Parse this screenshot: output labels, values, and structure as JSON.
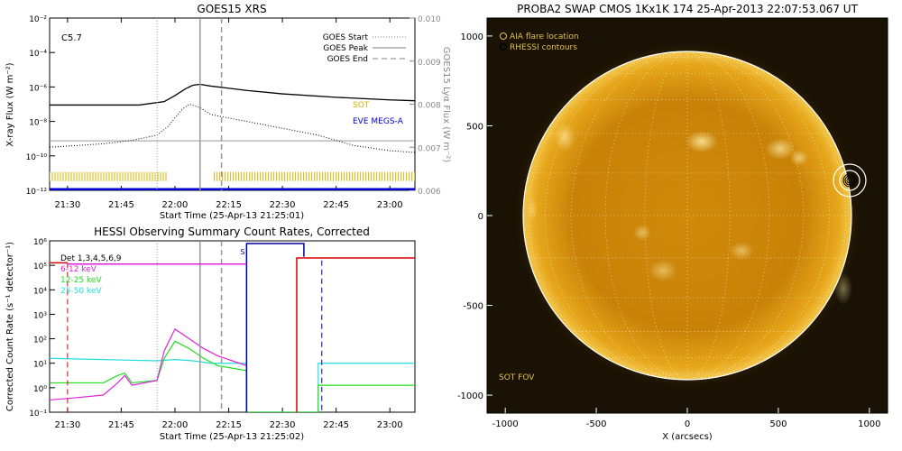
{
  "colors": {
    "sot": "#d4b400",
    "eve": "#0000cc",
    "goes_grey": "#999999",
    "r612": "#dd22dd",
    "r1225": "#22dd22",
    "r2550": "#22dddd",
    "red": "#dd0000",
    "blue": "#000099",
    "label_grey": "#888888",
    "sun_label": "#e0c24a"
  },
  "chart_data": [
    {
      "type": "line",
      "panel": "goes",
      "title": "GOES15 XRS",
      "xlabel": "Start Time (25-Apr-13 21:25:01)",
      "ylabel": "X-ray Flux (W m⁻²)",
      "y2label": "GOES15 Lyα Flux (W m⁻²)",
      "xlim": [
        "21:25",
        "23:07"
      ],
      "ylim_log10": [
        -12,
        -2
      ],
      "y2lim": [
        0.006,
        0.01
      ],
      "x_ticks": [
        "21:30",
        "21:45",
        "22:00",
        "22:15",
        "22:30",
        "22:45",
        "23:00"
      ],
      "y_ticks_left": [
        "10⁻¹²",
        "10⁻¹⁰",
        "10⁻⁸",
        "10⁻⁶",
        "10⁻⁴",
        "10⁻²"
      ],
      "y_ticks_right": [
        "0.006",
        "0.007",
        "0.008",
        "0.009",
        "0.010"
      ],
      "flare_class": "C5.7",
      "legend": [
        {
          "label": "GOES Start",
          "style": "dotted"
        },
        {
          "label": "GOES Peak",
          "style": "solid"
        },
        {
          "label": "GOES End",
          "style": "dashed"
        }
      ],
      "markers": {
        "start": "21:55",
        "peak": "22:07",
        "end": "22:13"
      },
      "annotations": {
        "sot": "SOT",
        "eve": "EVE MEGS-A"
      },
      "series": [
        {
          "name": "long",
          "x": [
            "21:25",
            "21:50",
            "21:57",
            "22:00",
            "22:03",
            "22:05",
            "22:07",
            "22:10",
            "22:20",
            "22:30",
            "22:45",
            "23:00",
            "23:07"
          ],
          "log_flux": [
            -7.05,
            -7.05,
            -6.85,
            -6.5,
            -6.1,
            -5.9,
            -5.85,
            -5.95,
            -6.2,
            -6.4,
            -6.6,
            -6.75,
            -6.8
          ]
        },
        {
          "name": "short",
          "x": [
            "21:25",
            "21:40",
            "21:48",
            "21:55",
            "21:58",
            "22:02",
            "22:04",
            "22:07",
            "22:10",
            "22:20",
            "22:30",
            "22:40",
            "22:50",
            "23:00",
            "23:07"
          ],
          "log_flux": [
            -9.5,
            -9.3,
            -9.1,
            -8.8,
            -8.3,
            -7.3,
            -7.0,
            -7.2,
            -7.6,
            -8.0,
            -8.4,
            -8.8,
            -9.4,
            -9.7,
            -9.8
          ]
        },
        {
          "name": "lyman_alpha",
          "x": [
            "21:25",
            "23:07"
          ],
          "flux": [
            0.00715,
            0.00715
          ]
        }
      ],
      "coverage": {
        "sot": [
          [
            "21:25",
            "21:58"
          ],
          [
            "22:11",
            "23:07"
          ]
        ],
        "eve_log_flux": -11.95
      }
    },
    {
      "type": "line",
      "panel": "hessi",
      "title": "HESSI Observing Summary Count Rates, Corrected",
      "xlabel": "Start Time (25-Apr-13 21:25:02)",
      "ylabel": "Corrected Count Rate (s⁻¹ detector⁻¹)",
      "xlim": [
        "21:25",
        "23:07"
      ],
      "ylim_log10": [
        -1,
        6
      ],
      "x_ticks": [
        "21:30",
        "21:45",
        "22:00",
        "22:15",
        "22:30",
        "22:45",
        "23:00"
      ],
      "y_ticks": [
        "10⁻¹",
        "10⁰",
        "10¹",
        "10²",
        "10³",
        "10⁴",
        "10⁵",
        "10⁶"
      ],
      "legend": [
        {
          "label": "Det 1,3,4,5,6,9",
          "color": "#000000"
        },
        {
          "label": "6-12 keV",
          "color": "#dd22dd"
        },
        {
          "label": "12-25 keV",
          "color": "#22dd22"
        },
        {
          "label": "25-50 keV",
          "color": "#22dddd"
        }
      ],
      "flags": {
        "s_label": "S"
      },
      "series": [
        {
          "name": "6-12 keV",
          "x": [
            "21:25",
            "21:33",
            "21:40",
            "21:44",
            "21:46",
            "21:48",
            "21:55",
            "21:57",
            "22:00",
            "22:04",
            "22:08",
            "22:12",
            "22:16",
            "22:20"
          ],
          "log_rate": [
            -0.5,
            -0.4,
            -0.3,
            0.2,
            0.5,
            0.1,
            0.3,
            1.5,
            2.4,
            2.0,
            1.6,
            1.3,
            1.1,
            0.9
          ]
        },
        {
          "name": "12-25 keV",
          "x": [
            "21:25",
            "21:33",
            "21:40",
            "21:44",
            "21:46",
            "21:48",
            "21:55",
            "21:57",
            "22:00",
            "22:04",
            "22:08",
            "22:12",
            "22:16",
            "22:20",
            "22:20",
            "22:40",
            "22:40",
            "23:07"
          ],
          "log_rate": [
            0.2,
            0.2,
            0.2,
            0.5,
            0.6,
            0.2,
            0.3,
            1.2,
            1.9,
            1.6,
            1.2,
            0.9,
            0.8,
            0.7,
            -1,
            -1,
            0.1,
            0.1
          ]
        },
        {
          "name": "25-50 keV",
          "x": [
            "21:25",
            "21:40",
            "21:55",
            "22:00",
            "22:05",
            "22:10",
            "22:20",
            "22:20",
            "22:40",
            "22:40",
            "23:07"
          ],
          "log_rate": [
            1.2,
            1.15,
            1.1,
            1.15,
            1.1,
            1.0,
            1.0,
            -1,
            -1,
            1.0,
            1.0
          ]
        }
      ],
      "markers": {
        "start": "21:55",
        "peak": "22:07",
        "end": "22:13",
        "att_in": "21:30",
        "att_out": "22:34",
        "blue_start": "22:20",
        "blue_dashed": "22:41"
      }
    },
    {
      "type": "heatmap",
      "panel": "swap",
      "title": "PROBA2 SWAP CMOS 1Kx1K 174 25-Apr-2013 22:07:53.067 UT",
      "xlabel": "X (arcsecs)",
      "xlim": [
        -1100,
        1100
      ],
      "ylim": [
        -1100,
        1100
      ],
      "x_ticks": [
        "-1000",
        "-500",
        "0",
        "500",
        "1000"
      ],
      "y_ticks": [
        "-1000",
        "-500",
        "0",
        "500",
        "1000"
      ],
      "legend": [
        "AIA flare location",
        "RHESSI contours"
      ],
      "fov_label": "SOT FOV",
      "flare_location": [
        930,
        200
      ]
    }
  ]
}
